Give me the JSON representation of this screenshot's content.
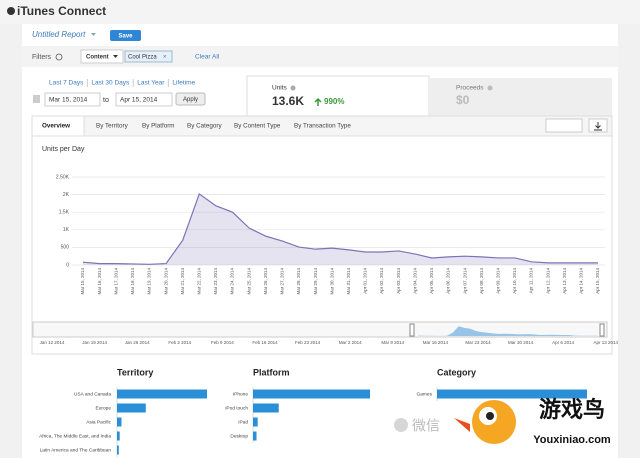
{
  "header": {
    "title": "iTunes Connect"
  },
  "report": {
    "name": "Untitled Report",
    "save": "Save"
  },
  "filters": {
    "label": "Filters",
    "field": "Content",
    "tag": "Cool Pizza",
    "clear": "Clear All"
  },
  "date_range": {
    "presets": [
      "Last 7 Days",
      "Last 30 Days",
      "Last Year",
      "Lifetime"
    ],
    "start": "Mar 15, 2014",
    "to": "to",
    "end": "Apr 15, 2014",
    "apply": "Apply"
  },
  "metrics": [
    {
      "label": "Units",
      "value": "13.6K",
      "change": "990%"
    },
    {
      "label": "Proceeds",
      "value": "$0"
    }
  ],
  "tabs": [
    "Overview",
    "By Territory",
    "By Platform",
    "By Category",
    "By Content Type",
    "By Transaction Type"
  ],
  "chart_data": {
    "type": "area",
    "title": "Units per Day",
    "categories": [
      "Mar 15, 2014",
      "Mar 16, 2014",
      "Mar 17, 2014",
      "Mar 18, 2014",
      "Mar 19, 2014",
      "Mar 20, 2014",
      "Mar 21, 2014",
      "Mar 22, 2014",
      "Mar 23, 2014",
      "Mar 24, 2014",
      "Mar 25, 2014",
      "Mar 26, 2014",
      "Mar 27, 2014",
      "Mar 28, 2014",
      "Mar 29, 2014",
      "Mar 30, 2014",
      "Mar 31, 2014",
      "Apr 01, 2014",
      "Apr 02, 2014",
      "Apr 03, 2014",
      "Apr 04, 2014",
      "Apr 05, 2014",
      "Apr 06, 2014",
      "Apr 07, 2014",
      "Apr 08, 2014",
      "Apr 09, 2014",
      "Apr 10, 2014",
      "Apr 11, 2014",
      "Apr 12, 2014",
      "Apr 13, 2014",
      "Apr 14, 2014",
      "Apr 15, 2014"
    ],
    "values": [
      80,
      40,
      40,
      30,
      20,
      40,
      700,
      2020,
      1680,
      1500,
      1050,
      820,
      680,
      510,
      450,
      480,
      430,
      370,
      370,
      400,
      310,
      200,
      230,
      250,
      230,
      200,
      200,
      90,
      60,
      60,
      60,
      60
    ],
    "color": "#7b74b6",
    "ylim": [
      0,
      2500
    ],
    "yticks": [
      0,
      500,
      {
        "value": 1000,
        "label": "1K"
      },
      {
        "value": 1500,
        "label": "1.5K"
      },
      {
        "value": 2000,
        "label": "2K"
      },
      {
        "value": 2500,
        "label": "2.50K"
      }
    ],
    "grid": true
  },
  "timeline": {
    "labels": [
      "Jan 12 2014",
      "Jan 19 2014",
      "Jan 26 2014",
      "Feb 2 2014",
      "Feb 9 2014",
      "Feb 16 2014",
      "Feb 23 2014",
      "Mar 2 2014",
      "Mar 9 2014",
      "Mar 16 2014",
      "Mar 23 2014",
      "Mar 30 2014",
      "Apr 6 2014",
      "Apr 13 2014"
    ]
  },
  "breakdowns": [
    {
      "title": "Territory",
      "categories": [
        "USA and Canada",
        "Europe",
        "Asia Pacific",
        "Africa, The Middle East, and India",
        "Latin America and The Caribbean"
      ],
      "values": [
        100,
        32,
        5,
        3,
        2
      ]
    },
    {
      "title": "Platform",
      "categories": [
        "iPhone",
        "iPod touch",
        "iPad",
        "Desktop"
      ],
      "values": [
        100,
        22,
        4,
        3
      ]
    },
    {
      "title": "Category",
      "categories": [
        "Games"
      ],
      "values": [
        100
      ]
    }
  ],
  "watermark": {
    "text": "微信",
    "brand": "游戏鸟",
    "url": "Youxiniao.com"
  }
}
